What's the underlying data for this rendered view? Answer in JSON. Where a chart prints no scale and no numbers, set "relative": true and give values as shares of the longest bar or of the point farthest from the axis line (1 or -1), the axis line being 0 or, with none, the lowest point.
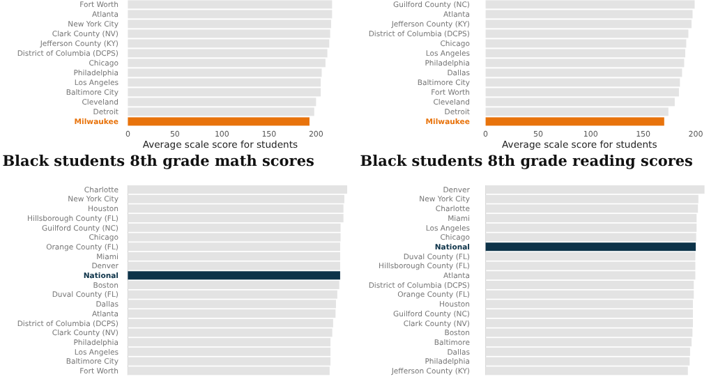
{
  "chart_data": [
    {
      "type": "bar",
      "orientation": "horizontal",
      "xlabel": "Average scale score for students",
      "categories": [
        "Fort Worth",
        "Atlanta",
        "New York City",
        "Clark County (NV)",
        "Jefferson County (KY)",
        "District of Columbia (DCPS)",
        "Chicago",
        "Philadelphia",
        "Los Angeles",
        "Baltimore City",
        "Cleveland",
        "Detroit",
        "Milwaukee"
      ],
      "values": [
        217,
        217,
        216,
        215,
        214,
        212,
        210,
        206,
        205,
        205,
        200,
        198,
        193
      ],
      "colors": [
        "#e3e3e3",
        "#e3e3e3",
        "#e3e3e3",
        "#e3e3e3",
        "#e3e3e3",
        "#e3e3e3",
        "#e3e3e3",
        "#e3e3e3",
        "#e3e3e3",
        "#e3e3e3",
        "#e3e3e3",
        "#e3e3e3",
        "#e8730c"
      ],
      "xlim": [
        0,
        220
      ],
      "xticks": [
        0,
        50,
        100,
        150,
        200
      ],
      "grid": false
    },
    {
      "type": "bar",
      "orientation": "horizontal",
      "xlabel": "Average scale score for students",
      "categories": [
        "Guilford County (NC)",
        "Atlanta",
        "Jefferson County (KY)",
        "District of Columbia (DCPS)",
        "Chicago",
        "Los Angeles",
        "Philadelphia",
        "Dallas",
        "Baltimore City",
        "Fort Worth",
        "Cleveland",
        "Detroit",
        "Milwaukee"
      ],
      "values": [
        199,
        197,
        196,
        193,
        191,
        190,
        189,
        187,
        185,
        184,
        180,
        174,
        170
      ],
      "colors": [
        "#e3e3e3",
        "#e3e3e3",
        "#e3e3e3",
        "#e3e3e3",
        "#e3e3e3",
        "#e3e3e3",
        "#e3e3e3",
        "#e3e3e3",
        "#e3e3e3",
        "#e3e3e3",
        "#e3e3e3",
        "#e3e3e3",
        "#e8730c"
      ],
      "xlim": [
        0,
        200
      ],
      "xticks": [
        0,
        50,
        100,
        150,
        200
      ],
      "grid": false
    },
    {
      "type": "bar",
      "orientation": "horizontal",
      "relative": true,
      "title": "Black students 8th grade math scores",
      "categories": [
        "Charlotte",
        "New York City",
        "Houston",
        "Hillsborough County (FL)",
        "Guilford County (NC)",
        "Chicago",
        "Orange County (FL)",
        "Miami",
        "Denver",
        "National",
        "Boston",
        "Duval County (FL)",
        "Dallas",
        "Atlanta",
        "District of Columbia (DCPS)",
        "Clark County (NV)",
        "Philadelphia",
        "Los Angeles",
        "Baltimore City",
        "Fort Worth"
      ],
      "values": [
        1,
        0.987,
        0.983,
        0.983,
        0.97,
        0.97,
        0.968,
        0.968,
        0.968,
        0.968,
        0.964,
        0.955,
        0.949,
        0.947,
        0.936,
        0.932,
        0.924,
        0.924,
        0.924,
        0.92
      ],
      "colors": [
        "#e3e3e3",
        "#e3e3e3",
        "#e3e3e3",
        "#e3e3e3",
        "#e3e3e3",
        "#e3e3e3",
        "#e3e3e3",
        "#e3e3e3",
        "#e3e3e3",
        "#0d3349",
        "#e3e3e3",
        "#e3e3e3",
        "#e3e3e3",
        "#e3e3e3",
        "#e3e3e3",
        "#e3e3e3",
        "#e3e3e3",
        "#e3e3e3",
        "#e3e3e3",
        "#e3e3e3"
      ],
      "grid": false
    },
    {
      "type": "bar",
      "orientation": "horizontal",
      "relative": true,
      "title": "Black students 8th grade reading scores",
      "categories": [
        "Denver",
        "New York City",
        "Charlotte",
        "Miami",
        "Los Angeles",
        "Chicago",
        "National",
        "Duval County (FL)",
        "Hillsborough County (FL)",
        "Atlanta",
        "District of Columbia (DCPS)",
        "Orange County (FL)",
        "Houston",
        "Guilford County (NC)",
        "Clark County (NV)",
        "Boston",
        "Baltimore",
        "Dallas",
        "Philadelphia",
        "Jefferson County (KY)"
      ],
      "values": [
        1,
        0.972,
        0.97,
        0.964,
        0.964,
        0.962,
        0.96,
        0.958,
        0.958,
        0.958,
        0.951,
        0.951,
        0.947,
        0.947,
        0.947,
        0.945,
        0.941,
        0.934,
        0.932,
        0.924
      ],
      "colors": [
        "#e3e3e3",
        "#e3e3e3",
        "#e3e3e3",
        "#e3e3e3",
        "#e3e3e3",
        "#e3e3e3",
        "#0d3349",
        "#e3e3e3",
        "#e3e3e3",
        "#e3e3e3",
        "#e3e3e3",
        "#e3e3e3",
        "#e3e3e3",
        "#e3e3e3",
        "#e3e3e3",
        "#e3e3e3",
        "#e3e3e3",
        "#e3e3e3",
        "#e3e3e3",
        "#e3e3e3"
      ],
      "grid": false
    }
  ]
}
